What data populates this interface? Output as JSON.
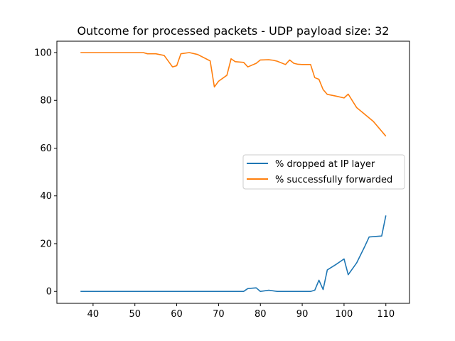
{
  "chart_data": {
    "type": "line",
    "title": "Outcome for processed packets - UDP payload size: 32",
    "xlabel": "",
    "ylabel": "",
    "xlim": [
      31.35,
      115.65
    ],
    "ylim": [
      -4.99,
      104.76
    ],
    "xticks": [
      40,
      50,
      60,
      70,
      80,
      90,
      100,
      110
    ],
    "yticks": [
      0,
      20,
      40,
      60,
      80,
      100
    ],
    "grid": false,
    "legend_position": "center-right",
    "series": [
      {
        "name": "% dropped at IP layer",
        "color": "#1f77b4",
        "x": [
          37,
          50,
          60,
          70,
          76,
          77,
          79,
          80,
          82,
          84,
          86,
          88,
          90,
          92,
          93,
          94,
          95,
          96,
          98,
          100,
          101,
          103,
          105,
          106,
          109,
          110
        ],
        "y": [
          0,
          0,
          0,
          0,
          0,
          1.2,
          1.5,
          0,
          0.5,
          0,
          0,
          0,
          0,
          0,
          0.5,
          4.7,
          0.8,
          9.0,
          11.2,
          13.6,
          7.0,
          11.9,
          19.0,
          22.8,
          23.2,
          31.8
        ]
      },
      {
        "name": "% successfully forwarded",
        "color": "#ff7f0e",
        "x": [
          37,
          45,
          52,
          53,
          55,
          57,
          59,
          60,
          61,
          63,
          65,
          68,
          69,
          70,
          72,
          73,
          74,
          76,
          77,
          79,
          80,
          82,
          83,
          84,
          86,
          87,
          88,
          89,
          90,
          92,
          93,
          94,
          95,
          96,
          98,
          100,
          101,
          103,
          107,
          110
        ],
        "y": [
          100,
          100,
          100,
          99.5,
          99.5,
          98.8,
          94.0,
          94.5,
          99.5,
          100,
          99.2,
          96.5,
          85.6,
          88.0,
          90.5,
          97.4,
          96.2,
          95.9,
          94.0,
          95.5,
          96.9,
          97.0,
          96.8,
          96.4,
          95.0,
          96.9,
          95.5,
          95.1,
          95.0,
          95.0,
          89.5,
          88.8,
          84.5,
          82.5,
          81.8,
          81.0,
          82.6,
          77.0,
          71.2,
          65.0
        ]
      }
    ]
  }
}
